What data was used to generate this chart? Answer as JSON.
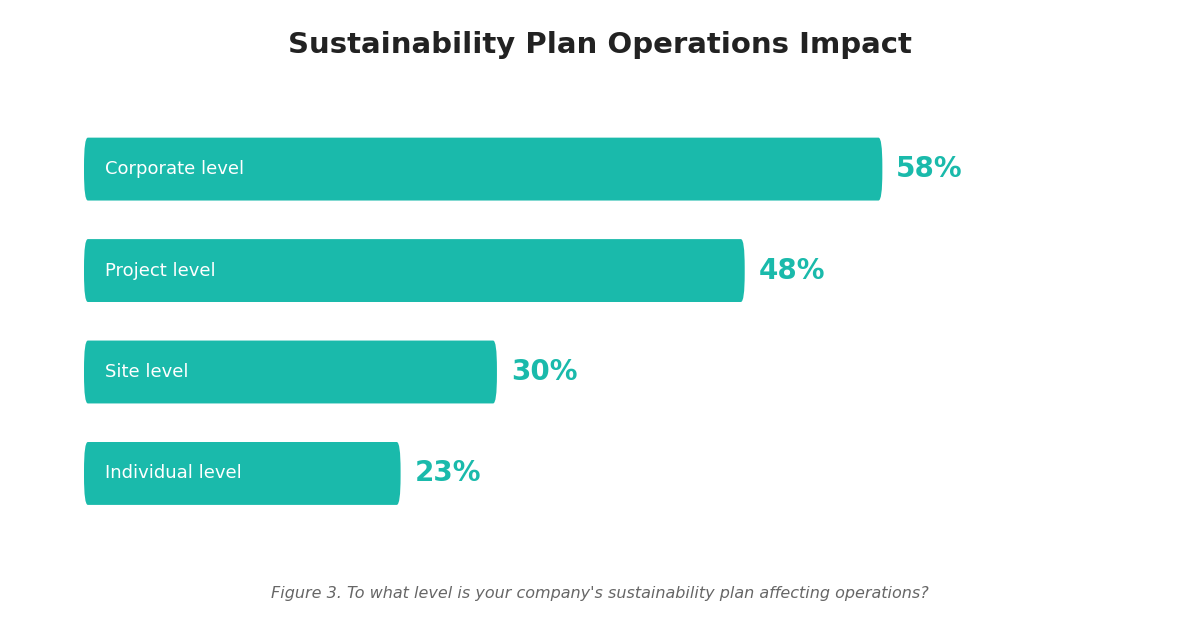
{
  "title": "Sustainability Plan Operations Impact",
  "categories": [
    "Corporate level",
    "Project level",
    "Site level",
    "Individual level"
  ],
  "values": [
    58,
    48,
    30,
    23
  ],
  "max_value": 68,
  "bar_color": "#1ABAAB",
  "label_color_inside": "#ffffff",
  "pct_color": "#1ABAAB",
  "background_color": "#ffffff",
  "title_fontsize": 21,
  "label_fontsize": 13,
  "pct_fontsize": 20,
  "caption": "Figure 3. To what level is your company's sustainability plan affecting operations?",
  "caption_fontsize": 11.5,
  "caption_color": "#666666",
  "title_color": "#222222"
}
